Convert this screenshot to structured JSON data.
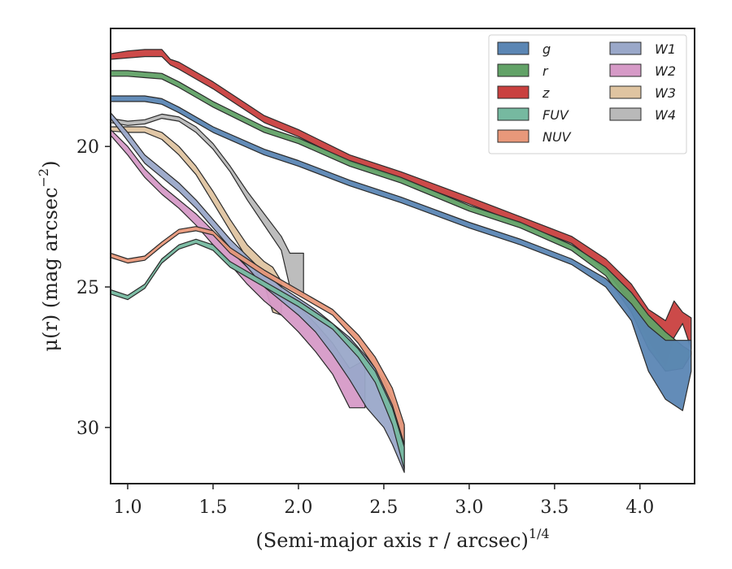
{
  "chart_data": {
    "type": "area",
    "xlabel": "(Semi-major axis r / arcsec)",
    "xlabel_sup": "1/4",
    "ylabel": "μ(r) (mag arcsec",
    "ylabel_sup": "−2",
    "ylabel_end": ")",
    "xlim": [
      0.9,
      4.32
    ],
    "ylim": [
      32.0,
      15.8
    ],
    "y_inverted": true,
    "x_ticks": [
      1.0,
      1.5,
      2.0,
      2.5,
      3.0,
      3.5,
      4.0
    ],
    "x_tick_labels": [
      "1.0",
      "1.5",
      "2.0",
      "2.5",
      "3.0",
      "3.5",
      "4.0"
    ],
    "y_ticks": [
      20,
      25,
      30
    ],
    "y_tick_labels": [
      "20",
      "25",
      "30"
    ],
    "grid": false,
    "legend_position": "top-right",
    "legend_columns": 2,
    "series": [
      {
        "name": "g",
        "color": "#5b86b4",
        "x": [
          0.9,
          1.0,
          1.1,
          1.2,
          1.3,
          1.5,
          1.8,
          2.0,
          2.3,
          2.6,
          3.0,
          3.3,
          3.6,
          3.8,
          3.95,
          4.05,
          4.15,
          4.25,
          4.3
        ],
        "lo": [
          18.2,
          18.2,
          18.2,
          18.3,
          18.6,
          19.3,
          20.1,
          20.5,
          21.2,
          21.8,
          22.7,
          23.3,
          24.0,
          24.7,
          25.6,
          26.4,
          26.9,
          26.9,
          26.9
        ],
        "hi": [
          18.4,
          18.4,
          18.4,
          18.5,
          18.8,
          19.5,
          20.3,
          20.7,
          21.4,
          22.0,
          22.9,
          23.5,
          24.2,
          25.0,
          26.2,
          28.0,
          29.0,
          29.4,
          28.0
        ]
      },
      {
        "name": "r",
        "color": "#62a267",
        "x": [
          0.9,
          1.0,
          1.1,
          1.2,
          1.3,
          1.5,
          1.8,
          2.0,
          2.3,
          2.6,
          3.0,
          3.3,
          3.6,
          3.8,
          3.95,
          4.05,
          4.15,
          4.25,
          4.3
        ],
        "lo": [
          17.3,
          17.3,
          17.35,
          17.4,
          17.7,
          18.4,
          19.3,
          19.7,
          20.5,
          21.1,
          22.1,
          22.7,
          23.5,
          24.3,
          25.2,
          26.0,
          26.6,
          27.1,
          27.3
        ],
        "hi": [
          17.5,
          17.5,
          17.55,
          17.6,
          17.9,
          18.6,
          19.5,
          19.9,
          20.7,
          21.3,
          22.3,
          22.9,
          23.7,
          24.6,
          25.9,
          27.2,
          28.0,
          27.9,
          27.4
        ]
      },
      {
        "name": "z",
        "color": "#c9403f",
        "x": [
          0.9,
          1.0,
          1.1,
          1.2,
          1.25,
          1.3,
          1.5,
          1.8,
          2.0,
          2.3,
          2.6,
          3.0,
          3.3,
          3.6,
          3.8,
          3.95,
          4.05,
          4.15,
          4.2,
          4.25,
          4.3
        ],
        "lo": [
          16.7,
          16.6,
          16.55,
          16.55,
          16.9,
          17.0,
          17.7,
          18.9,
          19.4,
          20.3,
          20.9,
          21.8,
          22.5,
          23.2,
          24.0,
          24.9,
          25.8,
          26.2,
          25.5,
          25.9,
          26.1
        ],
        "hi": [
          16.9,
          16.85,
          16.8,
          16.8,
          17.1,
          17.25,
          17.95,
          19.15,
          19.65,
          20.55,
          21.15,
          22.05,
          22.75,
          23.45,
          24.4,
          25.6,
          26.9,
          27.8,
          26.8,
          26.3,
          27.2
        ]
      },
      {
        "name": "FUV",
        "color": "#76b9a0",
        "x": [
          0.9,
          1.0,
          1.1,
          1.2,
          1.3,
          1.4,
          1.5,
          1.6,
          1.8,
          2.0,
          2.2,
          2.35,
          2.45,
          2.55,
          2.62
        ],
        "lo": [
          25.1,
          25.3,
          24.9,
          24.0,
          23.5,
          23.3,
          23.5,
          24.1,
          24.8,
          25.5,
          26.3,
          27.2,
          28.0,
          29.3,
          30.7
        ],
        "hi": [
          25.25,
          25.45,
          25.05,
          24.15,
          23.65,
          23.45,
          23.7,
          24.3,
          25.0,
          25.7,
          26.5,
          27.5,
          28.4,
          29.9,
          31.5
        ]
      },
      {
        "name": "NUV",
        "color": "#e8987a",
        "x": [
          0.9,
          1.0,
          1.1,
          1.2,
          1.3,
          1.4,
          1.5,
          1.6,
          1.8,
          2.0,
          2.2,
          2.35,
          2.45,
          2.55,
          2.62
        ],
        "lo": [
          23.8,
          24.0,
          23.9,
          23.4,
          22.95,
          22.85,
          23.0,
          23.6,
          24.4,
          25.1,
          25.8,
          26.7,
          27.5,
          28.6,
          29.9
        ],
        "hi": [
          23.95,
          24.15,
          24.05,
          23.55,
          23.1,
          23.0,
          23.15,
          23.8,
          24.6,
          25.3,
          26.0,
          27.0,
          27.9,
          29.2,
          30.6
        ]
      },
      {
        "name": "W1",
        "color": "#9aa8c9",
        "x": [
          0.9,
          1.0,
          1.1,
          1.2,
          1.3,
          1.4,
          1.5,
          1.6,
          1.7,
          1.8,
          1.9,
          2.0,
          2.1,
          2.2,
          2.3,
          2.4,
          2.5,
          2.55,
          2.62
        ],
        "lo": [
          18.8,
          19.5,
          20.3,
          20.8,
          21.3,
          21.9,
          22.6,
          23.3,
          23.9,
          24.5,
          25.0,
          25.4,
          25.8,
          26.3,
          26.8,
          27.5,
          28.3,
          29.0,
          30.0
        ],
        "hi": [
          19.0,
          19.8,
          20.6,
          21.1,
          21.6,
          22.2,
          22.9,
          23.6,
          24.3,
          25.0,
          25.5,
          26.0,
          26.6,
          27.4,
          28.3,
          29.3,
          30.0,
          30.6,
          31.6
        ]
      },
      {
        "name": "W2",
        "color": "#d69ac7",
        "x": [
          0.9,
          1.0,
          1.1,
          1.2,
          1.3,
          1.4,
          1.5,
          1.6,
          1.7,
          1.8,
          1.9,
          2.0,
          2.1,
          2.2,
          2.3,
          2.39
        ],
        "lo": [
          19.4,
          20.0,
          20.8,
          21.4,
          21.9,
          22.4,
          23.0,
          23.7,
          24.3,
          24.8,
          25.2,
          25.7,
          26.3,
          27.0,
          27.9,
          27.6
        ],
        "hi": [
          19.6,
          20.3,
          21.1,
          21.7,
          22.2,
          22.8,
          23.5,
          24.2,
          24.9,
          25.5,
          26.0,
          26.6,
          27.3,
          28.1,
          29.3,
          29.3
        ]
      },
      {
        "name": "W3",
        "color": "#dfc4a1",
        "x": [
          0.9,
          1.0,
          1.1,
          1.2,
          1.3,
          1.4,
          1.5,
          1.6,
          1.7,
          1.8,
          1.85,
          1.9
        ],
        "lo": [
          19.3,
          19.3,
          19.3,
          19.5,
          20.0,
          20.7,
          21.6,
          22.6,
          23.5,
          24.1,
          24.3,
          24.8
        ],
        "hi": [
          19.45,
          19.5,
          19.5,
          19.75,
          20.3,
          21.0,
          22.0,
          23.0,
          24.0,
          24.9,
          25.9,
          26.0
        ]
      },
      {
        "name": "W4",
        "color": "#b9b9b9",
        "x": [
          0.9,
          1.0,
          1.1,
          1.2,
          1.3,
          1.4,
          1.5,
          1.6,
          1.7,
          1.8,
          1.9,
          1.95,
          2.03
        ],
        "lo": [
          19.0,
          19.1,
          19.05,
          18.85,
          18.95,
          19.3,
          19.9,
          20.7,
          21.6,
          22.4,
          23.2,
          23.8,
          23.8
        ],
        "hi": [
          19.15,
          19.25,
          19.2,
          19.0,
          19.1,
          19.5,
          20.1,
          20.9,
          21.9,
          22.8,
          23.7,
          25.0,
          25.3
        ]
      }
    ]
  }
}
